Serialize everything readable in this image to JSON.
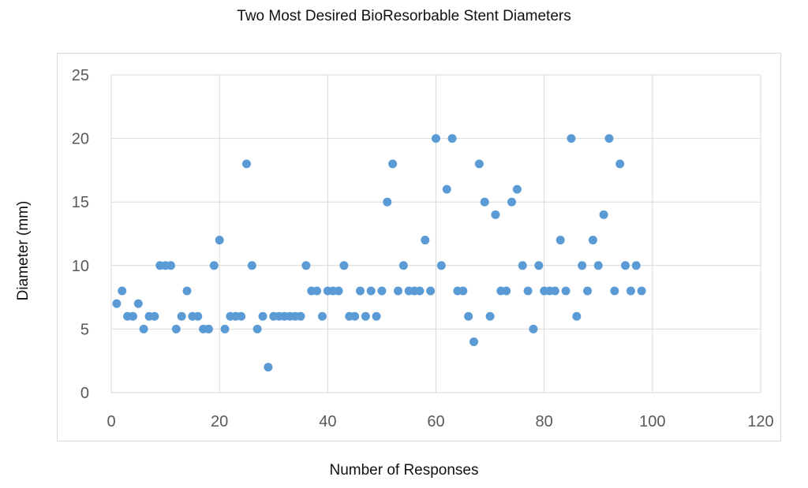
{
  "chart_data": {
    "type": "scatter",
    "title": "Two Most Desired BioResorbable Stent Diameters",
    "xlabel": "Number of Responses",
    "ylabel": "Diameter (mm)",
    "xlim": [
      0,
      120
    ],
    "ylim": [
      0,
      25
    ],
    "x_ticks": [
      0,
      20,
      40,
      60,
      80,
      100,
      120
    ],
    "y_ticks": [
      0,
      5,
      10,
      15,
      20,
      25
    ],
    "grid": true,
    "legend": "none",
    "marker_color": "#5b9bd5",
    "gridline_color": "#d9d9d9",
    "series": [
      {
        "points": [
          [
            1,
            7
          ],
          [
            2,
            8
          ],
          [
            3,
            6
          ],
          [
            4,
            6
          ],
          [
            5,
            7
          ],
          [
            6,
            5
          ],
          [
            7,
            6
          ],
          [
            8,
            6
          ],
          [
            9,
            10
          ],
          [
            10,
            10
          ],
          [
            11,
            10
          ],
          [
            12,
            5
          ],
          [
            13,
            6
          ],
          [
            14,
            8
          ],
          [
            15,
            6
          ],
          [
            16,
            6
          ],
          [
            17,
            5
          ],
          [
            18,
            5
          ],
          [
            19,
            10
          ],
          [
            20,
            12
          ],
          [
            21,
            5
          ],
          [
            22,
            6
          ],
          [
            23,
            6
          ],
          [
            24,
            6
          ],
          [
            25,
            18
          ],
          [
            26,
            10
          ],
          [
            27,
            5
          ],
          [
            28,
            6
          ],
          [
            29,
            2
          ],
          [
            30,
            6
          ],
          [
            31,
            6
          ],
          [
            32,
            6
          ],
          [
            33,
            6
          ],
          [
            34,
            6
          ],
          [
            35,
            6
          ],
          [
            36,
            10
          ],
          [
            37,
            8
          ],
          [
            38,
            8
          ],
          [
            39,
            6
          ],
          [
            40,
            8
          ],
          [
            41,
            8
          ],
          [
            42,
            8
          ],
          [
            43,
            10
          ],
          [
            44,
            6
          ],
          [
            45,
            6
          ],
          [
            46,
            8
          ],
          [
            47,
            6
          ],
          [
            48,
            8
          ],
          [
            49,
            6
          ],
          [
            50,
            8
          ],
          [
            51,
            15
          ],
          [
            52,
            18
          ],
          [
            53,
            8
          ],
          [
            54,
            10
          ],
          [
            55,
            8
          ],
          [
            56,
            8
          ],
          [
            57,
            8
          ],
          [
            58,
            12
          ],
          [
            59,
            8
          ],
          [
            60,
            20
          ],
          [
            61,
            10
          ],
          [
            62,
            16
          ],
          [
            63,
            20
          ],
          [
            64,
            8
          ],
          [
            65,
            8
          ],
          [
            66,
            6
          ],
          [
            67,
            4
          ],
          [
            68,
            18
          ],
          [
            69,
            15
          ],
          [
            70,
            6
          ],
          [
            71,
            14
          ],
          [
            72,
            8
          ],
          [
            73,
            8
          ],
          [
            74,
            15
          ],
          [
            75,
            16
          ],
          [
            76,
            10
          ],
          [
            77,
            8
          ],
          [
            78,
            5
          ],
          [
            79,
            10
          ],
          [
            80,
            8
          ],
          [
            81,
            8
          ],
          [
            82,
            8
          ],
          [
            83,
            12
          ],
          [
            84,
            8
          ],
          [
            85,
            20
          ],
          [
            86,
            6
          ],
          [
            87,
            10
          ],
          [
            88,
            8
          ],
          [
            89,
            12
          ],
          [
            90,
            10
          ],
          [
            91,
            14
          ],
          [
            92,
            20
          ],
          [
            93,
            8
          ],
          [
            94,
            18
          ],
          [
            95,
            10
          ],
          [
            96,
            8
          ],
          [
            97,
            10
          ],
          [
            98,
            8
          ]
        ]
      }
    ]
  }
}
